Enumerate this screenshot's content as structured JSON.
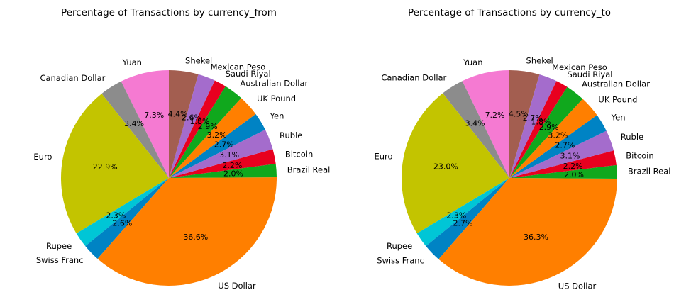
{
  "chart_data": [
    {
      "type": "pie",
      "title": "Percentage of Transactions by currency_from",
      "start_angle": 90,
      "direction": "counterclockwise",
      "slices": [
        {
          "label": "Yuan",
          "value": 7.3,
          "pct_text": "7.3%",
          "color": "#f57ad2"
        },
        {
          "label": "Canadian Dollar",
          "value": 3.4,
          "pct_text": "3.4%",
          "color": "#8c8c8c"
        },
        {
          "label": "Euro",
          "value": 22.9,
          "pct_text": "22.9%",
          "color": "#c3c400"
        },
        {
          "label": "Rupee",
          "value": 2.3,
          "pct_text": "2.3%",
          "color": "#00c6d6"
        },
        {
          "label": "Swiss Franc",
          "value": 2.6,
          "pct_text": "2.6%",
          "color": "#0083c4"
        },
        {
          "label": "US Dollar",
          "value": 36.6,
          "pct_text": "36.6%",
          "color": "#ff7f00"
        },
        {
          "label": "Brazil Real",
          "value": 2.0,
          "pct_text": "2.0%",
          "color": "#10a81d"
        },
        {
          "label": "Bitcoin",
          "value": 2.2,
          "pct_text": "2.2%",
          "color": "#e8001f"
        },
        {
          "label": "Ruble",
          "value": 3.1,
          "pct_text": "3.1%",
          "color": "#a46ccc"
        },
        {
          "label": "Yen",
          "value": 2.7,
          "pct_text": "2.7%",
          "color": "#0083c4"
        },
        {
          "label": "UK Pound",
          "value": 3.2,
          "pct_text": "3.2%",
          "color": "#ff7f00"
        },
        {
          "label": "Australian Dollar",
          "value": 2.9,
          "pct_text": "2.9%",
          "color": "#10a81d"
        },
        {
          "label": "Saudi Riyal",
          "value": 1.8,
          "pct_text": "1.8%",
          "color": "#e8001f"
        },
        {
          "label": "Mexican Peso",
          "value": 2.6,
          "pct_text": "2.6%",
          "color": "#a46ccc"
        },
        {
          "label": "Shekel",
          "value": 4.4,
          "pct_text": "4.4%",
          "color": "#a35e50"
        }
      ]
    },
    {
      "type": "pie",
      "title": "Percentage of Transactions by currency_to",
      "start_angle": 90,
      "direction": "counterclockwise",
      "slices": [
        {
          "label": "Yuan",
          "value": 7.2,
          "pct_text": "7.2%",
          "color": "#f57ad2"
        },
        {
          "label": "Canadian Dollar",
          "value": 3.4,
          "pct_text": "3.4%",
          "color": "#8c8c8c"
        },
        {
          "label": "Euro",
          "value": 23.0,
          "pct_text": "23.0%",
          "color": "#c3c400"
        },
        {
          "label": "Rupee",
          "value": 2.3,
          "pct_text": "2.3%",
          "color": "#00c6d6"
        },
        {
          "label": "Swiss Franc",
          "value": 2.7,
          "pct_text": "2.7%",
          "color": "#0083c4"
        },
        {
          "label": "US Dollar",
          "value": 36.3,
          "pct_text": "36.3%",
          "color": "#ff7f00"
        },
        {
          "label": "Brazil Real",
          "value": 2.0,
          "pct_text": "2.0%",
          "color": "#10a81d"
        },
        {
          "label": "Bitcoin",
          "value": 2.2,
          "pct_text": "2.2%",
          "color": "#e8001f"
        },
        {
          "label": "Ruble",
          "value": 3.1,
          "pct_text": "3.1%",
          "color": "#a46ccc"
        },
        {
          "label": "Yen",
          "value": 2.7,
          "pct_text": "2.7%",
          "color": "#0083c4"
        },
        {
          "label": "UK Pound",
          "value": 3.2,
          "pct_text": "3.2%",
          "color": "#ff7f00"
        },
        {
          "label": "Australian Dollar",
          "value": 2.9,
          "pct_text": "2.9%",
          "color": "#10a81d"
        },
        {
          "label": "Saudi Riyal",
          "value": 1.8,
          "pct_text": "1.8%",
          "color": "#e8001f"
        },
        {
          "label": "Mexican Peso",
          "value": 2.7,
          "pct_text": "2.7%",
          "color": "#a46ccc"
        },
        {
          "label": "Shekel",
          "value": 4.5,
          "pct_text": "4.5%",
          "color": "#a35e50"
        }
      ]
    }
  ]
}
